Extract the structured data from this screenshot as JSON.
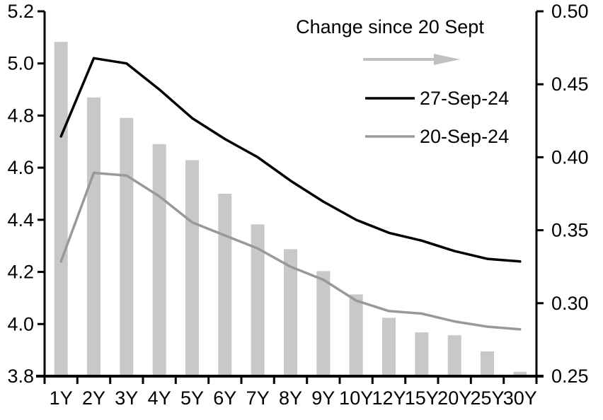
{
  "chart_data": {
    "type": "bar",
    "subtype": "bar-line-combo",
    "title": "",
    "categories": [
      "1Y",
      "2Y",
      "3Y",
      "4Y",
      "5Y",
      "6Y",
      "7Y",
      "8Y",
      "9Y",
      "10Y",
      "12Y",
      "15Y",
      "20Y",
      "25Y",
      "30Y"
    ],
    "bar_series": {
      "name": "Change since 20 Sept",
      "axis": "right",
      "values": [
        0.479,
        0.441,
        0.427,
        0.409,
        0.398,
        0.375,
        0.354,
        0.337,
        0.322,
        0.306,
        0.29,
        0.28,
        0.278,
        0.267,
        0.253
      ]
    },
    "line_series": [
      {
        "name": "27-Sep-24",
        "axis": "left",
        "values": [
          4.72,
          5.02,
          5.0,
          4.9,
          4.79,
          4.71,
          4.64,
          4.55,
          4.47,
          4.4,
          4.35,
          4.32,
          4.28,
          4.25,
          4.24
        ]
      },
      {
        "name": "20-Sep-24",
        "axis": "left",
        "values": [
          4.24,
          4.58,
          4.57,
          4.49,
          4.39,
          4.34,
          4.29,
          4.22,
          4.17,
          4.09,
          4.05,
          4.04,
          4.01,
          3.99,
          3.98
        ]
      }
    ],
    "left_axis": {
      "min": 3.8,
      "max": 5.2,
      "tick_labels": [
        "5.2",
        "5.0",
        "4.8",
        "4.6",
        "4.4",
        "4.2",
        "4.0",
        "3.8"
      ]
    },
    "right_axis": {
      "min": 0.25,
      "max": 0.5,
      "tick_labels": [
        "0.50",
        "0.45",
        "0.40",
        "0.35",
        "0.30",
        "0.25"
      ]
    },
    "legend": {
      "position": "top-right-inside",
      "title": "Change since 20 Sept",
      "arrow_icon": "right-arrow",
      "items": [
        {
          "label": "27-Sep-24",
          "color": "#000000"
        },
        {
          "label": "20-Sep-24",
          "color": "#999999"
        }
      ]
    },
    "grid": false,
    "colors": {
      "bar": "#C8C8C8",
      "line_27sep": "#000000",
      "line_20sep": "#999999",
      "arrow": "#C0C0C0",
      "axis": "#000000",
      "text": "#000000"
    }
  }
}
